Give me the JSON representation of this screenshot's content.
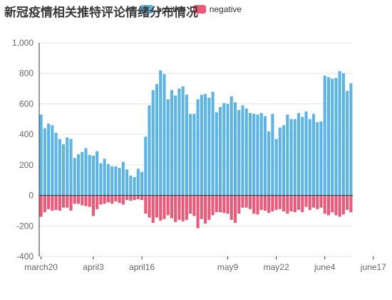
{
  "chart_data": {
    "type": "bar",
    "stacked": true,
    "title": "新冠疫情相关推特评论情绪分布情况",
    "legend_position": "top",
    "grid": true,
    "ylim": [
      -400,
      1000
    ],
    "yticks": [
      -400,
      -200,
      0,
      200,
      400,
      600,
      800,
      1000
    ],
    "ytick_labels": [
      "-400",
      "-200",
      "0",
      "200",
      "400",
      "600",
      "800",
      "1,000"
    ],
    "x_tick_labels": [
      {
        "index": 0,
        "label": "march20"
      },
      {
        "index": 14,
        "label": "april3"
      },
      {
        "index": 27,
        "label": "april16"
      },
      {
        "index": 50,
        "label": "may9"
      },
      {
        "index": 63,
        "label": "may22"
      },
      {
        "index": 76,
        "label": "june4"
      },
      {
        "index": 89,
        "label": "june17"
      }
    ],
    "series": [
      {
        "name": "positive",
        "color": "#5ab4e8",
        "values": [
          530,
          440,
          470,
          460,
          410,
          370,
          335,
          380,
          370,
          245,
          270,
          285,
          310,
          265,
          260,
          290,
          210,
          240,
          205,
          190,
          190,
          180,
          220,
          170,
          130,
          120,
          175,
          155,
          385,
          590,
          690,
          730,
          820,
          795,
          630,
          690,
          655,
          700,
          715,
          660,
          535,
          535,
          630,
          660,
          665,
          640,
          680,
          545,
          580,
          605,
          600,
          650,
          610,
          560,
          590,
          570,
          540,
          535,
          530,
          540,
          520,
          420,
          535,
          370,
          445,
          460,
          530,
          500,
          500,
          540,
          515,
          550,
          500,
          535,
          480,
          485,
          785,
          775,
          765,
          770,
          815,
          800,
          685,
          735
        ]
      },
      {
        "name": "negative",
        "color": "#ef5777",
        "values": [
          -140,
          -110,
          -90,
          -100,
          -95,
          -100,
          -80,
          -80,
          -100,
          -55,
          -55,
          -65,
          -70,
          -75,
          -135,
          -90,
          -60,
          -55,
          -45,
          -55,
          -40,
          -50,
          -60,
          -30,
          -35,
          -30,
          -25,
          -30,
          -120,
          -145,
          -180,
          -145,
          -165,
          -155,
          -130,
          -150,
          -175,
          -160,
          -170,
          -160,
          -120,
          -135,
          -215,
          -155,
          -185,
          -160,
          -130,
          -110,
          -110,
          -115,
          -120,
          -160,
          -180,
          -120,
          -80,
          -80,
          -90,
          -120,
          -125,
          -95,
          -100,
          -115,
          -105,
          -95,
          -90,
          -105,
          -120,
          -105,
          -110,
          -95,
          -110,
          -75,
          -95,
          -80,
          -90,
          -80,
          -120,
          -130,
          -110,
          -130,
          -140,
          -125,
          -95,
          -110
        ]
      }
    ]
  }
}
